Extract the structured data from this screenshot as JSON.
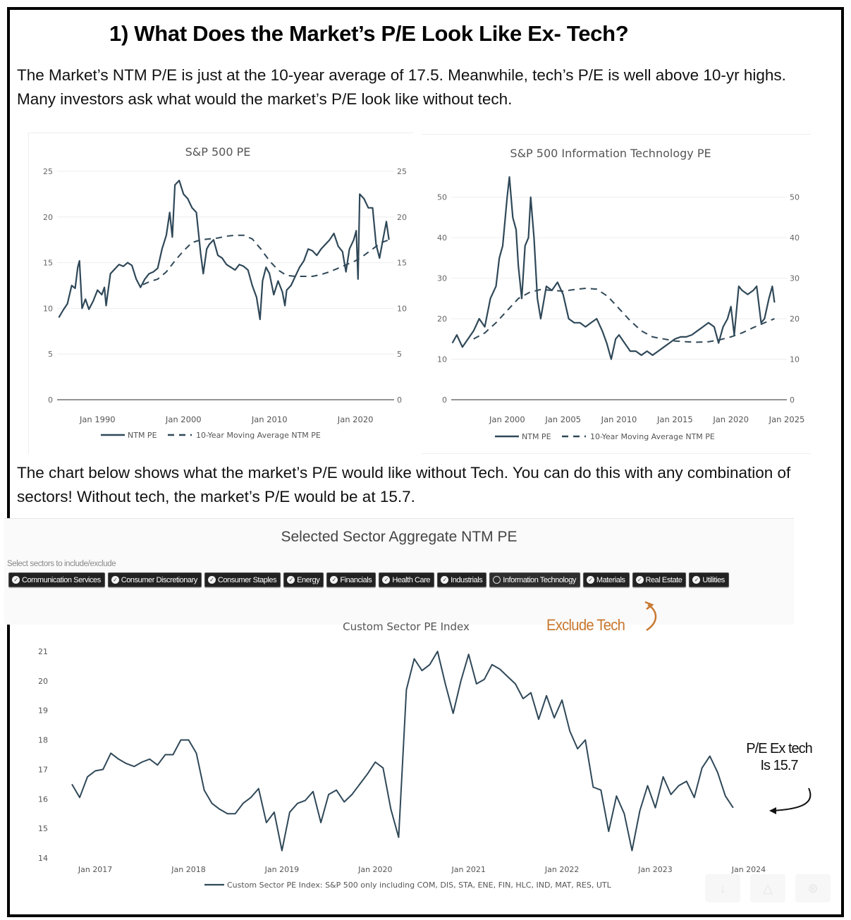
{
  "heading": "1)  What Does the Market’s P/E Look Like Ex- Tech?",
  "intro_paragraph": "The Market’s NTM P/E is just at the 10-year average of 17.5. Meanwhile, tech’s P/E is well above 10-yr highs. Many investors ask what would the market’s P/E look like without tech.",
  "second_paragraph": "The chart below shows what the market’s P/E would like without Tech. You can do this with any combination of sectors!  Without tech, the market’s P/E would be at 15.7.",
  "colors": {
    "line": "#2f4858",
    "annotation_orange": "#c8772e",
    "chip_bg": "#222222"
  },
  "sector_selector": {
    "title": "Selected Sector Aggregate NTM PE",
    "hint": "Select sectors to include/exclude",
    "sectors": [
      {
        "label": "Communication Services",
        "selected": true
      },
      {
        "label": "Consumer Discretionary",
        "selected": true
      },
      {
        "label": "Consumer Staples",
        "selected": true
      },
      {
        "label": "Energy",
        "selected": true
      },
      {
        "label": "Financials",
        "selected": true
      },
      {
        "label": "Health Care",
        "selected": true
      },
      {
        "label": "Industrials",
        "selected": true
      },
      {
        "label": "Information Technology",
        "selected": false
      },
      {
        "label": "Materials",
        "selected": true
      },
      {
        "label": "Real Estate",
        "selected": true
      },
      {
        "label": "Utilities",
        "selected": true
      }
    ]
  },
  "annotations": {
    "exclude_tech": "Exclude Tech",
    "pe_ex_tech_line1": "P/E Ex tech",
    "pe_ex_tech_line2": "Is 15.7"
  },
  "toolbar": {
    "icons": [
      "download-icon",
      "camera-icon",
      "reset-icon"
    ]
  },
  "chart_data": [
    {
      "id": "sp500",
      "type": "line",
      "title": "S&P 500 PE",
      "xlabel": "",
      "ylabel": "",
      "x_ticks": [
        "Jan 1990",
        "Jan 2000",
        "Jan 2010",
        "Jan 2020"
      ],
      "x_tick_years": [
        1990,
        2000,
        2010,
        2020
      ],
      "xlim": [
        1985.3,
        2024.5
      ],
      "ylim": [
        0,
        25
      ],
      "y_ticks": [
        0,
        5,
        10,
        15,
        20,
        25
      ],
      "grid": true,
      "legend": "bottom",
      "series": [
        {
          "name": "NTM PE",
          "style": "solid",
          "x": [
            1985.5,
            1986,
            1986.5,
            1987,
            1987.4,
            1987.7,
            1987.9,
            1988.2,
            1988.6,
            1989,
            1989.5,
            1990,
            1990.5,
            1990.8,
            1991,
            1991.5,
            1992,
            1992.5,
            1993,
            1993.5,
            1994,
            1994.5,
            1995,
            1995.5,
            1996,
            1996.5,
            1997,
            1997.5,
            1998,
            1998.4,
            1998.7,
            1999,
            1999.5,
            2000,
            2000.5,
            2001,
            2001.5,
            2002,
            2002.3,
            2002.7,
            2003,
            2003.5,
            2004,
            2004.5,
            2005,
            2005.5,
            2006,
            2006.5,
            2007,
            2007.5,
            2008,
            2008.5,
            2008.9,
            2009.2,
            2009.6,
            2010,
            2010.5,
            2011,
            2011.5,
            2011.8,
            2012,
            2012.5,
            2013,
            2013.5,
            2014,
            2014.5,
            2015,
            2015.5,
            2016,
            2016.5,
            2017,
            2017.5,
            2018,
            2018.5,
            2018.9,
            2019.3,
            2019.8,
            2020.1,
            2020.3,
            2020.5,
            2021,
            2021.5,
            2022,
            2022.4,
            2022.8,
            2023.2,
            2023.6,
            2023.9
          ],
          "y": [
            9.0,
            9.8,
            10.5,
            12.5,
            12.2,
            14.5,
            15.2,
            10.0,
            11.0,
            9.9,
            10.8,
            12.0,
            11.5,
            12.3,
            10.3,
            13.8,
            14.3,
            14.8,
            14.6,
            15.0,
            14.7,
            13.2,
            12.3,
            13.2,
            13.8,
            14.0,
            14.4,
            16.5,
            18.0,
            20.5,
            17.8,
            23.5,
            24.0,
            22.5,
            22.0,
            21.0,
            20.5,
            16.0,
            13.8,
            16.5,
            17.0,
            17.5,
            15.8,
            15.5,
            14.8,
            14.5,
            14.2,
            14.8,
            14.6,
            14.2,
            12.5,
            11.2,
            8.8,
            13.0,
            14.5,
            13.8,
            11.5,
            13.0,
            11.8,
            10.3,
            12.0,
            12.5,
            13.5,
            14.5,
            15.2,
            16.5,
            16.3,
            15.8,
            16.5,
            17.0,
            17.5,
            18.2,
            16.8,
            16.2,
            14.0,
            16.5,
            17.5,
            18.5,
            13.2,
            22.5,
            22.0,
            21.0,
            21.0,
            17.0,
            15.5,
            17.5,
            19.5,
            17.5
          ]
        },
        {
          "name": "10-Year Moving Average NTM PE",
          "style": "dashed",
          "x": [
            1995.3,
            1996,
            1997,
            1998,
            1999,
            2000,
            2001,
            2002,
            2003,
            2004,
            2005,
            2006,
            2007,
            2008,
            2009,
            2010,
            2011,
            2012,
            2013,
            2014,
            2015,
            2016,
            2017,
            2018,
            2019,
            2020,
            2021,
            2022,
            2023,
            2023.9
          ],
          "y": [
            12.6,
            12.9,
            13.2,
            14.0,
            15.2,
            16.3,
            17.2,
            17.5,
            17.6,
            17.7,
            17.9,
            18.0,
            18.0,
            17.6,
            16.5,
            15.2,
            14.2,
            13.6,
            13.5,
            13.5,
            13.5,
            13.7,
            14.0,
            14.4,
            14.8,
            15.2,
            15.8,
            16.5,
            17.2,
            17.5
          ]
        }
      ]
    },
    {
      "id": "sp500_it",
      "type": "line",
      "title": "S&P 500 Information Technology PE",
      "xlabel": "",
      "ylabel": "",
      "x_ticks": [
        "Jan 2000",
        "Jan 2005",
        "Jan 2010",
        "Jan 2015",
        "Jan 2020",
        "Jan 2025"
      ],
      "x_tick_years": [
        2000,
        2005,
        2010,
        2015,
        2020,
        2025
      ],
      "xlim": [
        1995.0,
        2025.0
      ],
      "ylim": [
        0,
        55
      ],
      "y_ticks": [
        0,
        10,
        20,
        30,
        40,
        50
      ],
      "grid": true,
      "legend": "bottom",
      "series": [
        {
          "name": "NTM PE",
          "style": "solid",
          "x": [
            1995.1,
            1995.5,
            1996,
            1996.5,
            1997,
            1997.5,
            1998,
            1998.5,
            1999,
            1999.3,
            1999.6,
            2000,
            2000.2,
            2000.5,
            2000.8,
            2001,
            2001.3,
            2001.6,
            2001.9,
            2002.1,
            2002.4,
            2002.7,
            2003,
            2003.5,
            2004,
            2004.5,
            2005,
            2005.5,
            2006,
            2006.5,
            2007,
            2007.5,
            2008,
            2008.5,
            2008.9,
            2009.3,
            2009.7,
            2010,
            2010.5,
            2011,
            2011.5,
            2012,
            2012.5,
            2013,
            2013.5,
            2014,
            2014.5,
            2015,
            2015.5,
            2016,
            2016.5,
            2017,
            2017.5,
            2018,
            2018.5,
            2018.9,
            2019.3,
            2019.7,
            2020,
            2020.3,
            2020.7,
            2021,
            2021.5,
            2022,
            2022.3,
            2022.7,
            2023,
            2023.4,
            2023.7,
            2023.9
          ],
          "y": [
            14,
            16,
            13,
            15,
            17,
            20,
            18,
            25,
            28,
            35,
            38,
            50,
            55,
            45,
            42,
            33,
            25,
            38,
            40,
            50,
            40,
            25,
            20,
            28,
            27,
            29,
            26,
            20,
            19,
            19,
            18,
            19,
            20,
            17,
            14,
            10,
            15,
            16,
            14,
            12,
            12,
            11,
            12,
            11,
            12,
            13,
            14,
            15,
            15.5,
            15.5,
            16,
            17,
            18,
            19,
            18,
            14,
            18,
            20,
            23,
            16,
            28,
            27,
            26,
            27,
            28,
            19,
            20,
            25,
            28,
            24
          ]
        },
        {
          "name": "10-Year Moving Average NTM PE",
          "style": "dashed",
          "x": [
            1997,
            1998,
            1999,
            2000,
            2001,
            2002,
            2003,
            2004,
            2005,
            2006,
            2007,
            2008,
            2009,
            2010,
            2011,
            2012,
            2013,
            2014,
            2015,
            2016,
            2017,
            2018,
            2019,
            2020,
            2021,
            2022,
            2023,
            2023.9
          ],
          "y": [
            15,
            16.5,
            19,
            22,
            25,
            26.5,
            27.2,
            27.0,
            26.8,
            27.2,
            27.5,
            27.3,
            25.5,
            22.5,
            19.5,
            17.0,
            15.5,
            15.0,
            14.5,
            14.3,
            14.2,
            14.3,
            14.8,
            15.5,
            16.5,
            17.8,
            19.0,
            20.0
          ]
        }
      ]
    },
    {
      "id": "custom_sector",
      "type": "line",
      "title": "Custom Sector PE Index",
      "xlabel": "",
      "ylabel": "",
      "x_ticks": [
        "Jan 2017",
        "Jan 2018",
        "Jan 2019",
        "Jan 2020",
        "Jan 2021",
        "Jan 2022",
        "Jan 2023",
        "Jan 2024"
      ],
      "x_tick_months": [
        3,
        15,
        27,
        39,
        51,
        63,
        75,
        87
      ],
      "xlim_months": [
        -2.9,
        89
      ],
      "ylim": [
        14,
        21
      ],
      "y_ticks": [
        14,
        15,
        16,
        17,
        18,
        19,
        20,
        21
      ],
      "grid": false,
      "legend": "bottom",
      "series": [
        {
          "name": "Custom Sector PE Index: S&P 500 only including COM, DIS, STA, ENE, FIN, HLC, IND, MAT, RES, UTL",
          "style": "solid",
          "start": "Oct 2016",
          "frequency": "monthly",
          "values": [
            16.5,
            16.05,
            16.75,
            16.95,
            17.0,
            17.55,
            17.35,
            17.2,
            17.1,
            17.25,
            17.35,
            17.15,
            17.5,
            17.5,
            18.0,
            18.0,
            17.55,
            16.3,
            15.85,
            15.65,
            15.5,
            15.5,
            15.85,
            16.05,
            16.35,
            15.2,
            15.55,
            14.25,
            15.55,
            15.85,
            15.95,
            16.25,
            15.2,
            16.15,
            16.3,
            15.9,
            16.15,
            16.5,
            16.85,
            17.25,
            17.05,
            15.65,
            14.7,
            19.7,
            20.75,
            20.35,
            20.55,
            21.0,
            19.9,
            18.9,
            20.0,
            20.9,
            19.9,
            20.05,
            20.55,
            20.4,
            20.15,
            19.9,
            19.4,
            19.6,
            18.7,
            19.5,
            18.75,
            19.35,
            18.3,
            17.7,
            18.0,
            16.4,
            16.3,
            14.9,
            16.1,
            15.5,
            14.25,
            15.6,
            16.45,
            15.7,
            16.75,
            16.15,
            16.45,
            16.6,
            16.05,
            17.05,
            17.45,
            16.9,
            16.1,
            15.7
          ]
        }
      ]
    }
  ]
}
